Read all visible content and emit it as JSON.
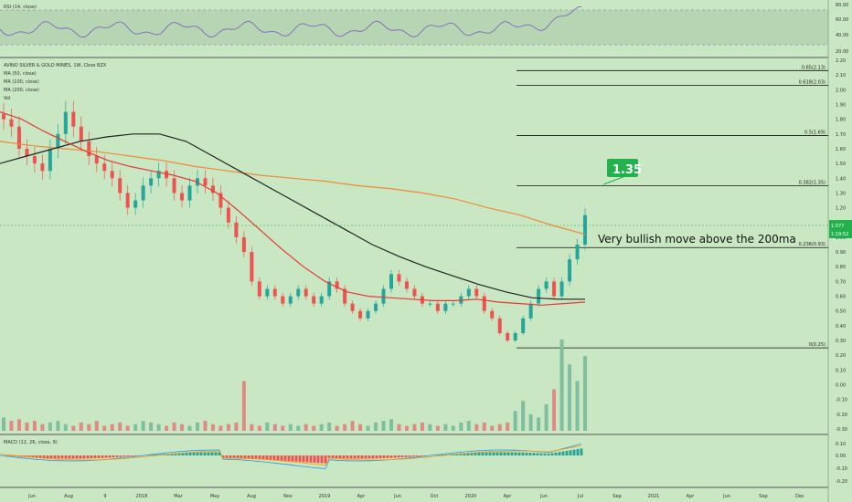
{
  "rsi_panel": {
    "label": "RSI (14, close)",
    "ticks": [
      "80.00",
      "60.00",
      "40.00",
      "20.00"
    ]
  },
  "main_panel": {
    "title": "AVINO SILVER & GOLD MINES, 1W, Cboe BZX",
    "legend": [
      "MA (50, close)",
      "MA (100, close)",
      "MA (200, close)",
      "Vol"
    ],
    "price_ticks": [
      "2.20",
      "2.10",
      "2.00",
      "1.90",
      "1.80",
      "1.70",
      "1.60",
      "1.50",
      "1.40",
      "1.30",
      "1.20",
      "1.10",
      "1.00",
      "0.90",
      "0.80",
      "0.70",
      "0.60",
      "0.50",
      "0.40",
      "0.30",
      "0.20",
      "0.10",
      "0.00",
      "-0.10",
      "-0.20",
      "-0.30"
    ],
    "price_tag_top": "1.077",
    "price_tag_bottom": "1:19:52",
    "callout": "1.35",
    "annotation": "Very bullish move above the 200ma"
  },
  "macd_panel": {
    "label": "MACD (12, 26, close, 9)",
    "ticks": [
      "0.10",
      "0.00",
      "-0.10",
      "-0.20"
    ]
  },
  "x_axis": [
    "Jun",
    "Aug",
    "9",
    "2018",
    "Mar",
    "May",
    "Aug",
    "Nov",
    "2019",
    "Apr",
    "Jun",
    "Oct",
    "2020",
    "Apr",
    "Jun",
    "Jul",
    "Sep",
    "2021",
    "Apr",
    "Jun",
    "Sep",
    "Dec"
  ],
  "colors": {
    "up": "#26a69a",
    "down": "#ef5350",
    "ma50": "#e53935",
    "ma100": "#222222",
    "ma200": "#ef8a3a",
    "rsi": "#7e57c2",
    "accent": "#22b14c"
  },
  "chart_data": {
    "type": "candlestick",
    "title": "AVINO SILVER & GOLD MINES, 1W, Cboe BZX",
    "fib_levels": [
      {
        "label": "0.65(2.13)",
        "value": 2.13
      },
      {
        "label": "0.618(2.03)",
        "value": 2.03
      },
      {
        "label": "0.5(1.69)",
        "value": 1.69
      },
      {
        "label": "0.382(1.35)",
        "value": 1.35
      },
      {
        "label": "0.236(0.93)",
        "value": 0.93
      },
      {
        "label": "0(0.25)",
        "value": 0.25
      }
    ],
    "current_price": 1.077,
    "price_range": [
      -0.3,
      2.2
    ],
    "close_series": [
      1.8,
      1.75,
      1.6,
      1.55,
      1.5,
      1.45,
      1.6,
      1.7,
      1.85,
      1.75,
      1.65,
      1.55,
      1.5,
      1.45,
      1.4,
      1.3,
      1.2,
      1.25,
      1.35,
      1.4,
      1.45,
      1.4,
      1.3,
      1.25,
      1.35,
      1.4,
      1.35,
      1.3,
      1.2,
      1.1,
      1.0,
      0.9,
      0.7,
      0.6,
      0.65,
      0.6,
      0.55,
      0.6,
      0.65,
      0.6,
      0.55,
      0.6,
      0.7,
      0.65,
      0.55,
      0.5,
      0.45,
      0.5,
      0.55,
      0.65,
      0.75,
      0.7,
      0.65,
      0.6,
      0.55,
      0.55,
      0.5,
      0.55,
      0.55,
      0.6,
      0.65,
      0.6,
      0.5,
      0.45,
      0.35,
      0.3,
      0.35,
      0.45,
      0.55,
      0.65,
      0.7,
      0.6,
      0.7,
      0.85,
      0.95,
      1.15
    ],
    "ma50": [
      1.85,
      1.8,
      1.72,
      1.65,
      1.58,
      1.52,
      1.48,
      1.45,
      1.42,
      1.38,
      1.3,
      1.18,
      1.05,
      0.92,
      0.8,
      0.7,
      0.63,
      0.6,
      0.59,
      0.58,
      0.57,
      0.57,
      0.58,
      0.56,
      0.55,
      0.54,
      0.55,
      0.56
    ],
    "ma100": [
      1.5,
      1.55,
      1.6,
      1.65,
      1.68,
      1.7,
      1.7,
      1.65,
      1.55,
      1.45,
      1.35,
      1.25,
      1.15,
      1.05,
      0.95,
      0.87,
      0.8,
      0.74,
      0.68,
      0.63,
      0.59,
      0.58,
      0.58
    ],
    "ma200": [
      1.65,
      1.62,
      1.6,
      1.58,
      1.55,
      1.52,
      1.48,
      1.45,
      1.42,
      1.4,
      1.38,
      1.35,
      1.33,
      1.3,
      1.26,
      1.2,
      1.15,
      1.08,
      1.02
    ],
    "volume": [
      8,
      6,
      7,
      5,
      6,
      4,
      5,
      6,
      4,
      3,
      5,
      4,
      6,
      3,
      4,
      5,
      3,
      4,
      6,
      5,
      4,
      3,
      5,
      4,
      3,
      5,
      6,
      4,
      3,
      4,
      5,
      30,
      4,
      3,
      5,
      4,
      3,
      4,
      3,
      4,
      3,
      4,
      5,
      3,
      4,
      6,
      4,
      3,
      5,
      6,
      7,
      4,
      3,
      4,
      5,
      4,
      3,
      4,
      3,
      5,
      6,
      4,
      5,
      3,
      4,
      5,
      12,
      18,
      10,
      8,
      16,
      25,
      55,
      40,
      30,
      45
    ]
  }
}
